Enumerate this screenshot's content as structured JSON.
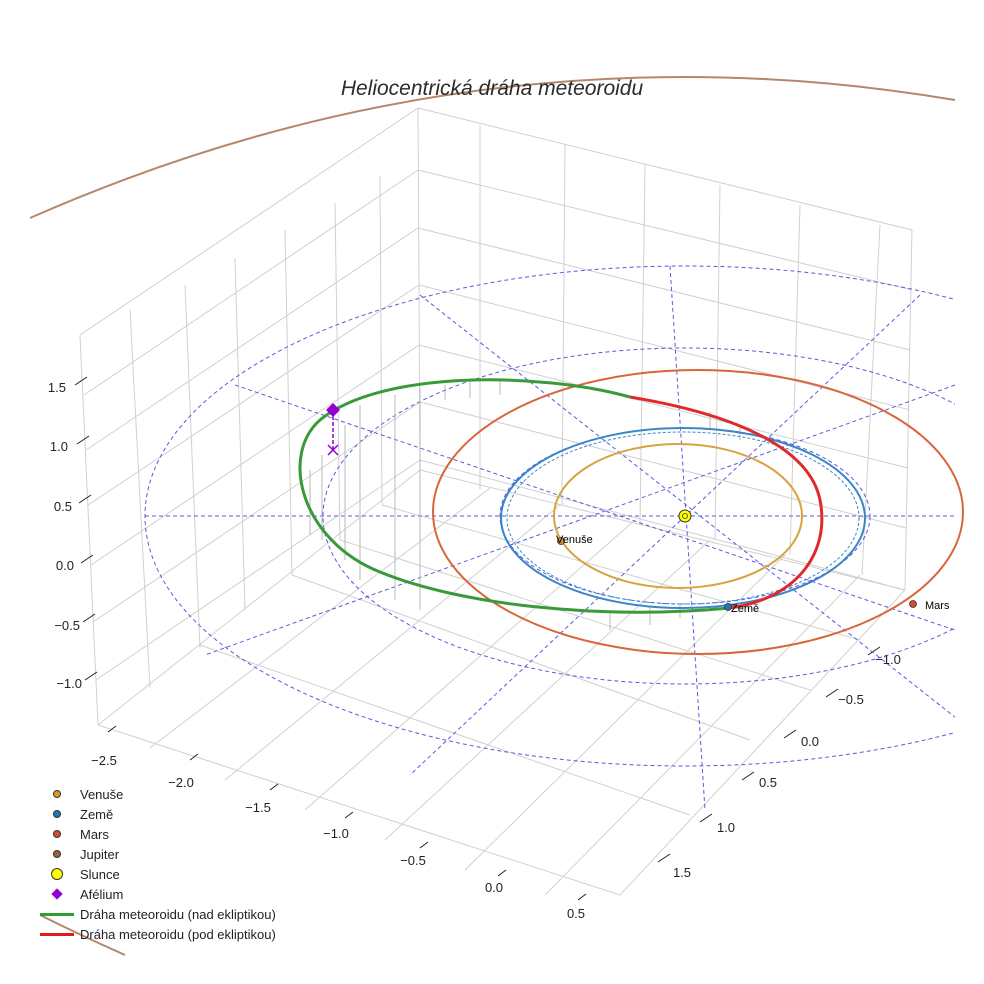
{
  "chart_data": {
    "type": "scatter",
    "title": "Heliocentrická dráha meteoroidu",
    "x_ticks": [
      "−2.5",
      "−2.0",
      "−1.5",
      "−1.0",
      "−0.5",
      "0.0",
      "0.5"
    ],
    "y_ticks": [
      "−1.0",
      "−0.5",
      "0.0",
      "0.5",
      "1.0",
      "1.5"
    ],
    "z_ticks": [
      "−1.0",
      "−0.5",
      "0.0",
      "0.5",
      "1.0",
      "1.5"
    ],
    "planets": [
      {
        "name": "Venuše",
        "radius_au": 0.72,
        "color": "#d89a2a",
        "label": "Venuše"
      },
      {
        "name": "Země",
        "radius_au": 1.0,
        "color": "#1f77b4",
        "label": "Země"
      },
      {
        "name": "Mars",
        "radius_au": 1.52,
        "color": "#d0502a",
        "label": "Mars"
      },
      {
        "name": "Jupiter",
        "radius_au": 5.2,
        "color": "#a0613a",
        "label": ""
      }
    ],
    "sun": {
      "name": "Slunce",
      "color": "#ffff00"
    },
    "aphelion": {
      "name": "Afélium",
      "color": "#9400d3"
    },
    "orbit_above": {
      "name": "Dráha meteoroidu (nad ekliptikou)",
      "color": "#2ca02c"
    },
    "orbit_below": {
      "name": "Dráha meteoroidu (pod ekliptikou)",
      "color": "#e41a1c"
    },
    "grid": true,
    "legend_position": "lower-left"
  },
  "legend": [
    {
      "symbol": "dot",
      "color": "#d89a2a",
      "label": "Venuše"
    },
    {
      "symbol": "dot",
      "color": "#1f77b4",
      "label": "Země"
    },
    {
      "symbol": "dot",
      "color": "#d0502a",
      "label": "Mars"
    },
    {
      "symbol": "dot",
      "color": "#a0613a",
      "label": "Jupiter"
    },
    {
      "symbol": "bigdot",
      "color": "#ffff00",
      "label": "Slunce"
    },
    {
      "symbol": "diamond",
      "color": "#9400d3",
      "label": "Afélium"
    },
    {
      "symbol": "line",
      "color": "#2ca02c",
      "label": "Dráha meteoroidu (nad ekliptikou)"
    },
    {
      "symbol": "line",
      "color": "#e41a1c",
      "label": "Dráha meteoroidu (pod ekliptikou)"
    }
  ]
}
